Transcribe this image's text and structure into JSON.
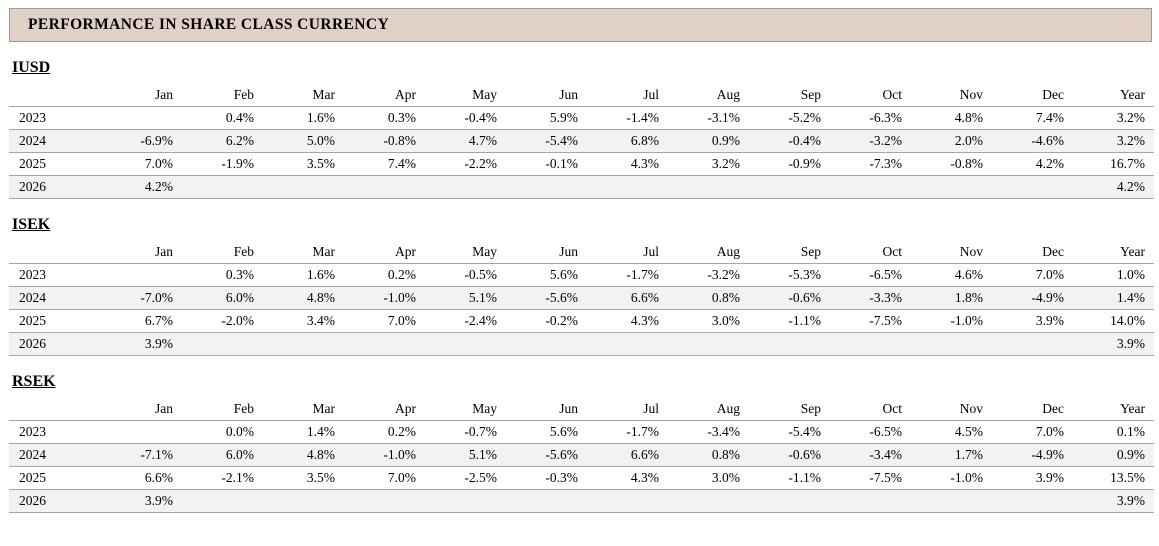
{
  "header": {
    "title": "PERFORMANCE IN SHARE CLASS CURRENCY"
  },
  "columns": [
    "Jan",
    "Feb",
    "Mar",
    "Apr",
    "May",
    "Jun",
    "Jul",
    "Aug",
    "Sep",
    "Oct",
    "Nov",
    "Dec",
    "Year"
  ],
  "sections": [
    {
      "name": "IUSD",
      "rows": [
        {
          "year": "2023",
          "values": [
            "",
            "0.4%",
            "1.6%",
            "0.3%",
            "-0.4%",
            "5.9%",
            "-1.4%",
            "-3.1%",
            "-5.2%",
            "-6.3%",
            "4.8%",
            "7.4%",
            "3.2%"
          ]
        },
        {
          "year": "2024",
          "values": [
            "-6.9%",
            "6.2%",
            "5.0%",
            "-0.8%",
            "4.7%",
            "-5.4%",
            "6.8%",
            "0.9%",
            "-0.4%",
            "-3.2%",
            "2.0%",
            "-4.6%",
            "3.2%"
          ]
        },
        {
          "year": "2025",
          "values": [
            "7.0%",
            "-1.9%",
            "3.5%",
            "7.4%",
            "-2.2%",
            "-0.1%",
            "4.3%",
            "3.2%",
            "-0.9%",
            "-7.3%",
            "-0.8%",
            "4.2%",
            "16.7%"
          ]
        },
        {
          "year": "2026",
          "values": [
            "4.2%",
            "",
            "",
            "",
            "",
            "",
            "",
            "",
            "",
            "",
            "",
            "",
            "4.2%"
          ]
        }
      ]
    },
    {
      "name": "ISEK",
      "rows": [
        {
          "year": "2023",
          "values": [
            "",
            "0.3%",
            "1.6%",
            "0.2%",
            "-0.5%",
            "5.6%",
            "-1.7%",
            "-3.2%",
            "-5.3%",
            "-6.5%",
            "4.6%",
            "7.0%",
            "1.0%"
          ]
        },
        {
          "year": "2024",
          "values": [
            "-7.0%",
            "6.0%",
            "4.8%",
            "-1.0%",
            "5.1%",
            "-5.6%",
            "6.6%",
            "0.8%",
            "-0.6%",
            "-3.3%",
            "1.8%",
            "-4.9%",
            "1.4%"
          ]
        },
        {
          "year": "2025",
          "values": [
            "6.7%",
            "-2.0%",
            "3.4%",
            "7.0%",
            "-2.4%",
            "-0.2%",
            "4.3%",
            "3.0%",
            "-1.1%",
            "-7.5%",
            "-1.0%",
            "3.9%",
            "14.0%"
          ]
        },
        {
          "year": "2026",
          "values": [
            "3.9%",
            "",
            "",
            "",
            "",
            "",
            "",
            "",
            "",
            "",
            "",
            "",
            "3.9%"
          ]
        }
      ]
    },
    {
      "name": "RSEK",
      "rows": [
        {
          "year": "2023",
          "values": [
            "",
            "0.0%",
            "1.4%",
            "0.2%",
            "-0.7%",
            "5.6%",
            "-1.7%",
            "-3.4%",
            "-5.4%",
            "-6.5%",
            "4.5%",
            "7.0%",
            "0.1%"
          ]
        },
        {
          "year": "2024",
          "values": [
            "-7.1%",
            "6.0%",
            "4.8%",
            "-1.0%",
            "5.1%",
            "-5.6%",
            "6.6%",
            "0.8%",
            "-0.6%",
            "-3.4%",
            "1.7%",
            "-4.9%",
            "0.9%"
          ]
        },
        {
          "year": "2025",
          "values": [
            "6.6%",
            "-2.1%",
            "3.5%",
            "7.0%",
            "-2.5%",
            "-0.3%",
            "4.3%",
            "3.0%",
            "-1.1%",
            "-7.5%",
            "-1.0%",
            "3.9%",
            "13.5%"
          ]
        },
        {
          "year": "2026",
          "values": [
            "3.9%",
            "",
            "",
            "",
            "",
            "",
            "",
            "",
            "",
            "",
            "",
            "",
            "3.9%"
          ]
        }
      ]
    }
  ],
  "colors": {
    "header_bg": "#e0d0c6",
    "header_border": "#9b9b9b",
    "row_stripe": "#f2f2f2",
    "row_line": "#a6a6a6"
  }
}
